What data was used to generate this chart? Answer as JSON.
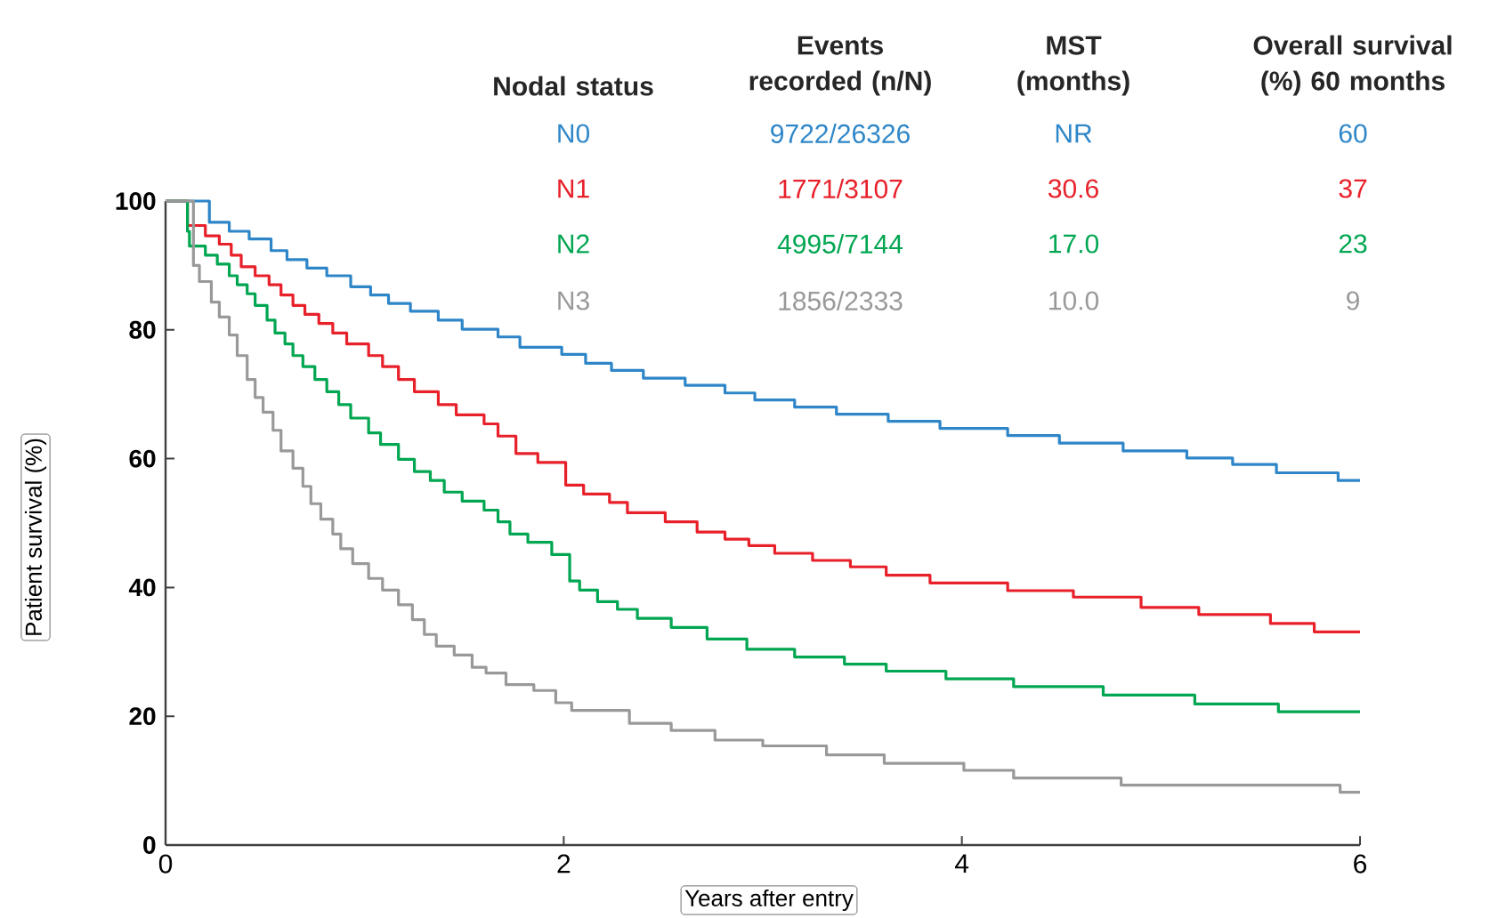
{
  "chart_data": {
    "type": "step",
    "ylabel": "Patient survival (%)",
    "xlabel": "Years after entry",
    "xlim": [
      0,
      6
    ],
    "xticks": [
      0,
      2,
      4,
      6
    ],
    "ylim": [
      0,
      100
    ],
    "yticks": [
      0,
      20,
      40,
      60,
      80,
      100
    ],
    "annotations": [
      "Nodal status",
      "Events recorded (n/N)",
      "MST (months)",
      "Overall survival (%) 60 months",
      "9722/26326",
      "NR",
      "60",
      "1771/3107",
      "30.6",
      "37",
      "4995/7144",
      "17.0",
      "23",
      "1856/2333",
      "10.0",
      "9"
    ],
    "series": [
      {
        "name": "N0",
        "color": "#2e86c8",
        "x": [
          0,
          0.22,
          0.32,
          0.42,
          0.53,
          0.61,
          0.71,
          0.81,
          0.93,
          1.03,
          1.12,
          1.23,
          1.37,
          1.49,
          1.67,
          1.78,
          1.99,
          2.11,
          2.24,
          2.4,
          2.61,
          2.81,
          2.96,
          3.16,
          3.37,
          3.63,
          3.89,
          4.23,
          4.49,
          4.81,
          5.13,
          5.36,
          5.58,
          5.89,
          6
        ],
        "values": [
          100,
          96.7,
          95.3,
          94.1,
          92.3,
          90.9,
          89.6,
          88.4,
          86.7,
          85.4,
          84.1,
          82.9,
          81.5,
          80.1,
          78.9,
          77.3,
          76.2,
          74.8,
          73.7,
          72.5,
          71.4,
          70.2,
          69.1,
          68.0,
          66.9,
          65.8,
          64.7,
          63.6,
          62.4,
          61.2,
          60.1,
          59.1,
          57.8,
          56.6,
          56.6
        ]
      },
      {
        "name": "N1",
        "color": "#e8202a",
        "x": [
          0,
          0.11,
          0.2,
          0.27,
          0.33,
          0.38,
          0.45,
          0.52,
          0.58,
          0.64,
          0.7,
          0.77,
          0.84,
          0.91,
          1.02,
          1.09,
          1.17,
          1.25,
          1.37,
          1.46,
          1.6,
          1.67,
          1.76,
          1.87,
          2.01,
          2.1,
          2.23,
          2.32,
          2.51,
          2.67,
          2.81,
          2.93,
          3.06,
          3.25,
          3.44,
          3.62,
          3.84,
          4.23,
          4.56,
          4.9,
          5.19,
          5.55,
          5.77,
          6
        ],
        "values": [
          100,
          96.2,
          94.6,
          93.3,
          91.6,
          89.8,
          88.4,
          87.0,
          85.4,
          83.8,
          82.4,
          81.0,
          79.5,
          77.8,
          76.0,
          74.3,
          72.3,
          70.4,
          68.4,
          66.8,
          65.4,
          63.5,
          60.8,
          59.4,
          55.9,
          54.5,
          53.2,
          51.6,
          50.2,
          48.6,
          47.5,
          46.5,
          45.3,
          44.2,
          43.2,
          41.9,
          40.7,
          39.5,
          38.5,
          36.9,
          35.8,
          34.4,
          33.1,
          33.1
        ]
      },
      {
        "name": "N2",
        "color": "#00a651",
        "x": [
          0,
          0.11,
          0.12,
          0.2,
          0.26,
          0.32,
          0.36,
          0.41,
          0.45,
          0.51,
          0.55,
          0.6,
          0.64,
          0.69,
          0.75,
          0.81,
          0.87,
          0.93,
          1.02,
          1.08,
          1.17,
          1.25,
          1.33,
          1.4,
          1.49,
          1.6,
          1.67,
          1.73,
          1.82,
          1.94,
          2.03,
          2.08,
          2.17,
          2.27,
          2.37,
          2.54,
          2.72,
          2.92,
          3.16,
          3.41,
          3.62,
          3.92,
          4.26,
          4.71,
          5.17,
          5.59,
          6
        ],
        "values": [
          100,
          95.3,
          93.0,
          91.6,
          90.2,
          88.4,
          87.0,
          85.6,
          83.8,
          81.5,
          79.5,
          77.8,
          76.0,
          74.3,
          72.3,
          70.4,
          68.4,
          66.3,
          64.0,
          62.2,
          59.9,
          58.0,
          56.6,
          54.8,
          53.4,
          52.0,
          50.2,
          48.3,
          47.0,
          45.1,
          41.0,
          39.6,
          37.8,
          36.6,
          35.2,
          33.8,
          32.0,
          30.4,
          29.2,
          28.1,
          27.0,
          25.8,
          24.6,
          23.3,
          21.9,
          20.7,
          20.7
        ]
      },
      {
        "name": "N3",
        "color": "#999999",
        "x": [
          0,
          0.14,
          0.17,
          0.23,
          0.27,
          0.32,
          0.36,
          0.41,
          0.45,
          0.49,
          0.54,
          0.58,
          0.64,
          0.69,
          0.73,
          0.78,
          0.84,
          0.88,
          0.94,
          1.02,
          1.09,
          1.17,
          1.24,
          1.3,
          1.36,
          1.45,
          1.54,
          1.61,
          1.71,
          1.85,
          1.96,
          2.04,
          2.33,
          2.54,
          2.76,
          3.0,
          3.32,
          3.61,
          4.01,
          4.26,
          4.8,
          5.9,
          6
        ],
        "values": [
          100,
          90.0,
          87.5,
          84.3,
          82.0,
          79.2,
          76.0,
          72.3,
          69.5,
          67.2,
          64.4,
          61.2,
          58.5,
          55.7,
          53.0,
          50.6,
          48.3,
          46.0,
          43.7,
          41.4,
          39.6,
          37.3,
          35.0,
          32.7,
          30.9,
          29.5,
          27.6,
          26.7,
          24.9,
          24.0,
          22.1,
          20.9,
          18.9,
          17.8,
          16.3,
          15.4,
          14.0,
          12.7,
          11.6,
          10.4,
          9.3,
          8.2,
          8.2
        ]
      }
    ]
  }
}
